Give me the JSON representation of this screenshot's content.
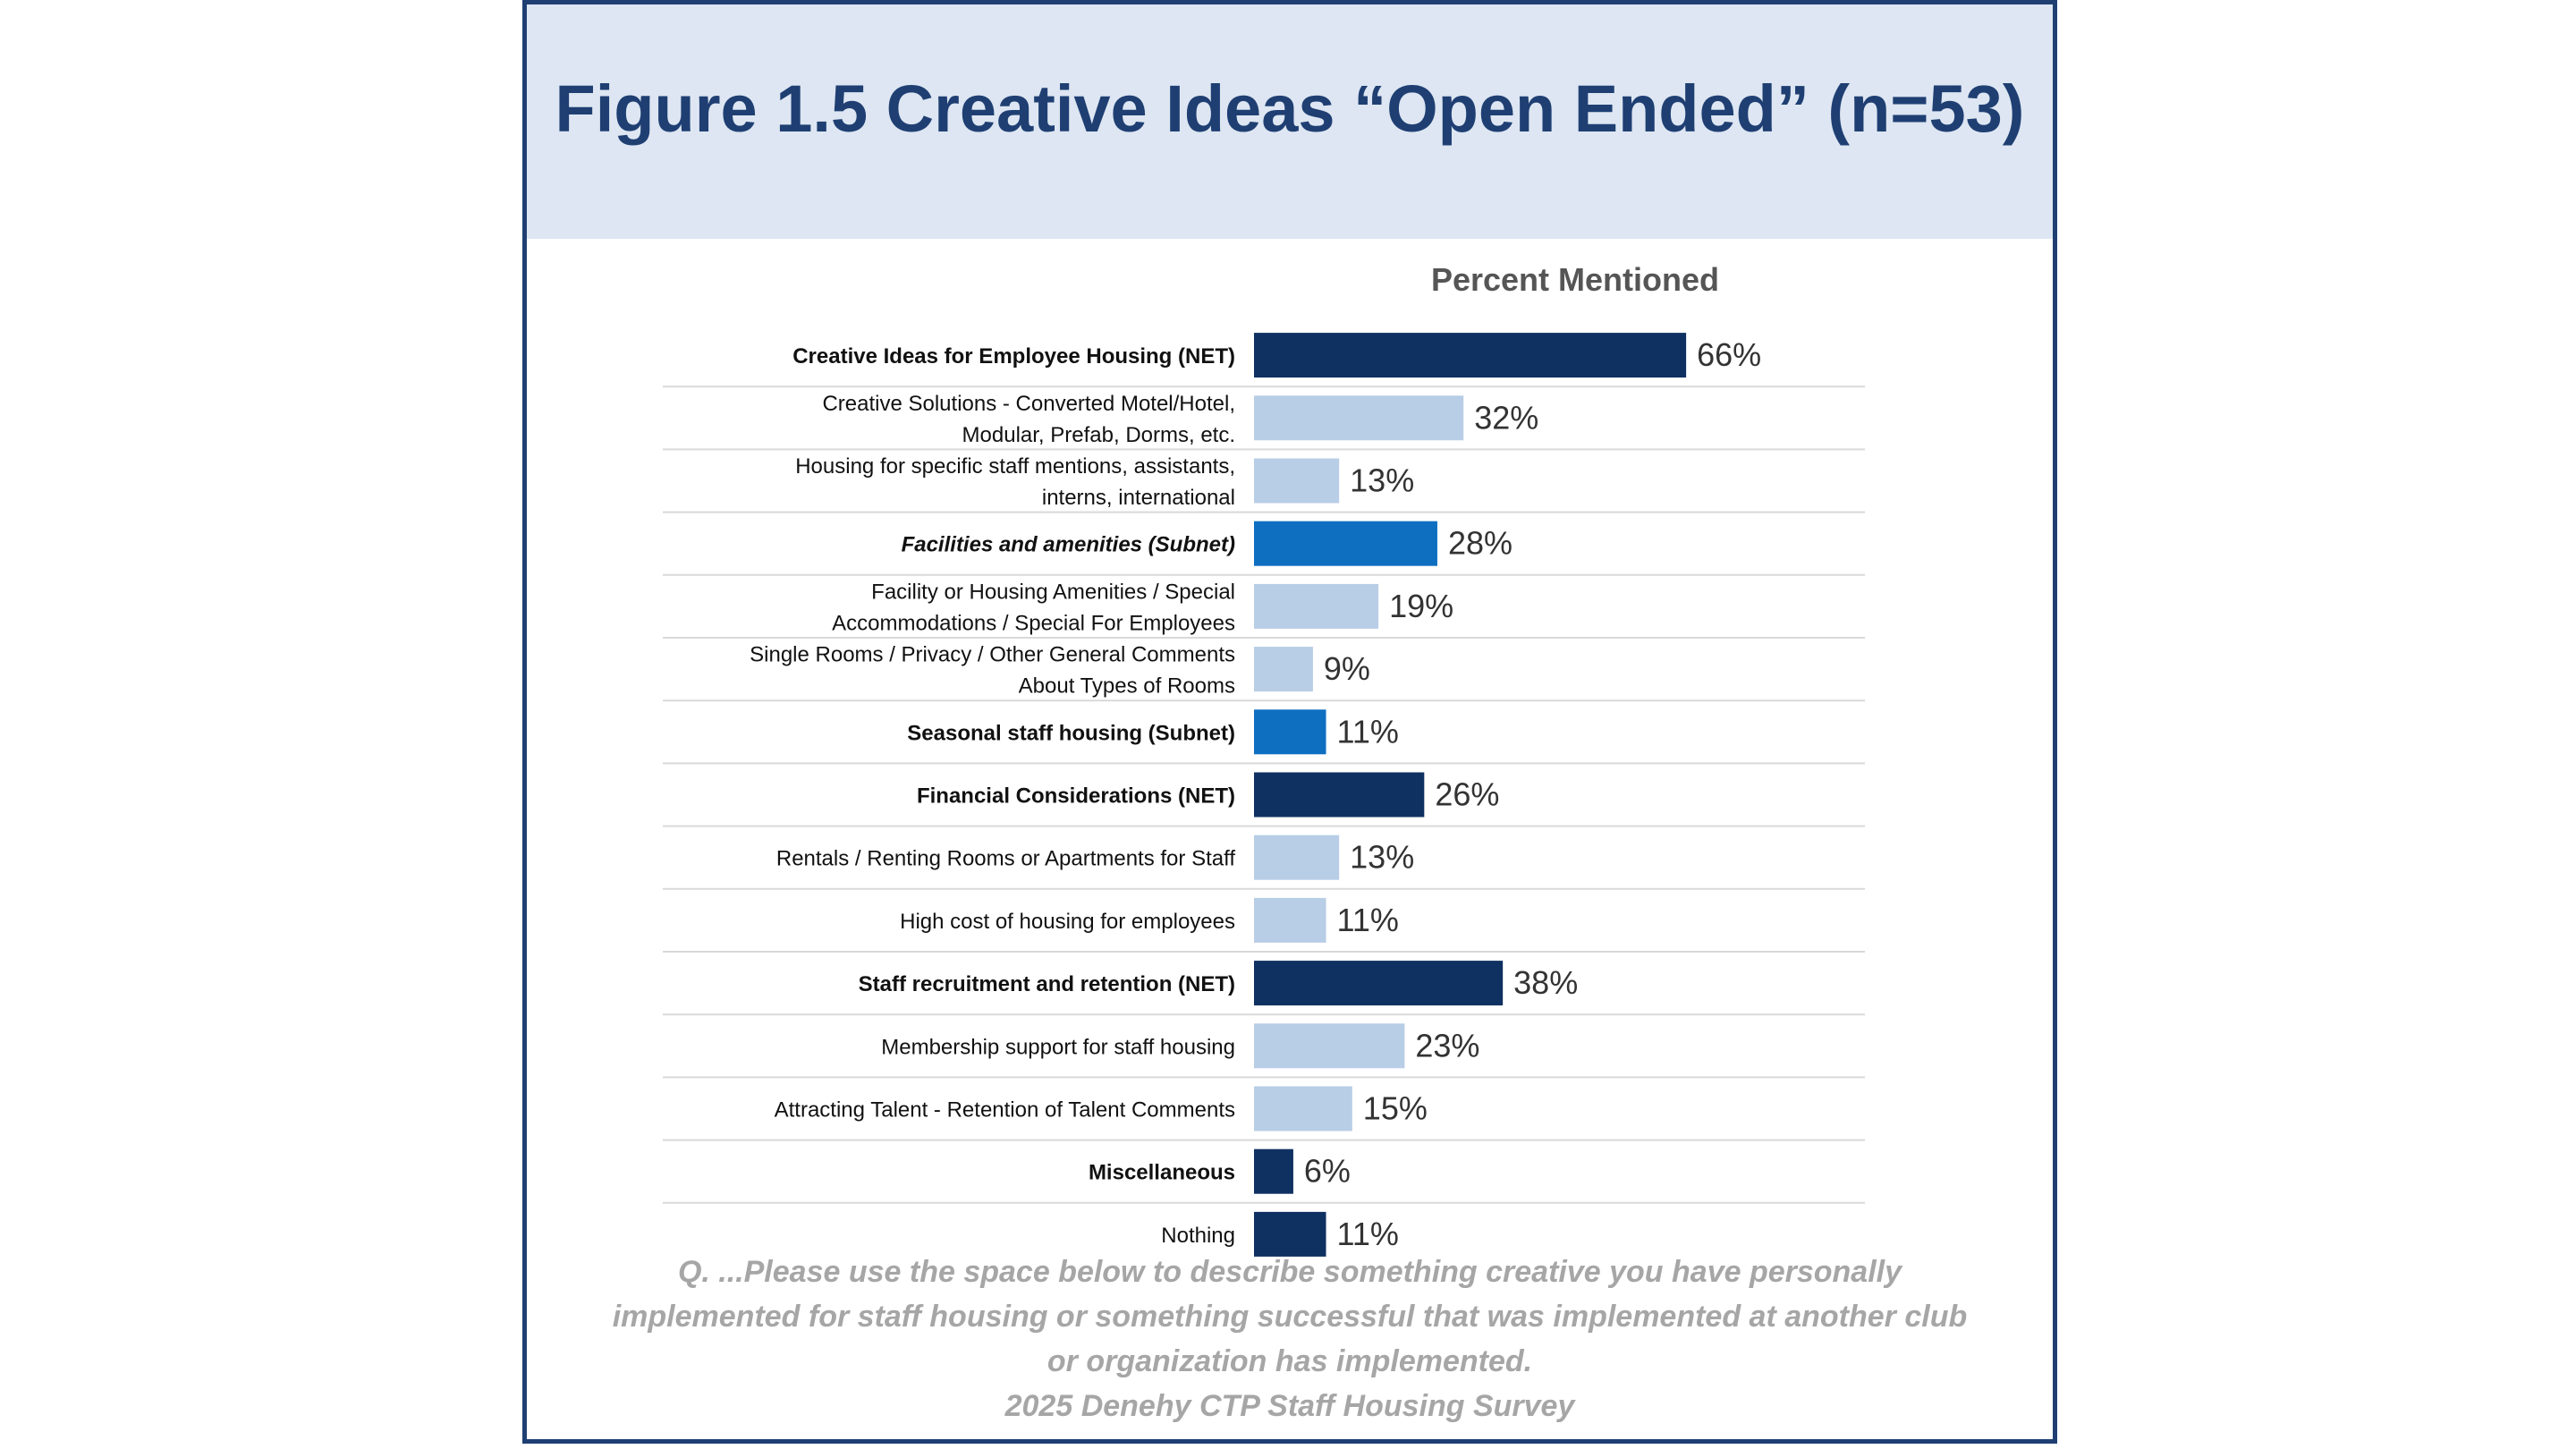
{
  "page": {
    "title": "Figure 1.5 Creative Ideas “Open Ended” (n=53)",
    "footnote_lines": [
      "Q. ...Please use the space below to describe something creative you have personally",
      "implemented for staff housing or something successful that was implemented at another club",
      "or organization has implemented.",
      "2025 Denehy CTP Staff Housing Survey"
    ]
  },
  "colors": {
    "net": "#0f3161",
    "subnet": "#0e6fc1",
    "detail": "#b8cde6",
    "title": "#1f3f73",
    "header_bg": "#dde6f2"
  },
  "chart_data": {
    "type": "bar",
    "orientation": "horizontal",
    "title": "Percent Mentioned",
    "value_suffix": "%",
    "xlim": [
      0,
      100
    ],
    "grid": false,
    "legend": "none",
    "categories": [
      {
        "label": [
          "Creative Ideas for Employee Housing (NET)"
        ],
        "value": 66,
        "kind": "net",
        "style": "bold"
      },
      {
        "label": [
          "Creative Solutions - Converted Motel/Hotel,",
          "Modular, Prefab, Dorms, etc."
        ],
        "value": 32,
        "kind": "detail",
        "style": "normal"
      },
      {
        "label": [
          "Housing for specific staff mentions, assistants,",
          "interns, international"
        ],
        "value": 13,
        "kind": "detail",
        "style": "normal"
      },
      {
        "label": [
          "Facilities and amenities (Subnet)"
        ],
        "value": 28,
        "kind": "subnet",
        "style": "bold-italic"
      },
      {
        "label": [
          "Facility or Housing Amenities / Special",
          "Accommodations / Special For Employees"
        ],
        "value": 19,
        "kind": "detail",
        "style": "normal"
      },
      {
        "label": [
          "Single Rooms / Privacy / Other General Comments",
          "About Types of Rooms"
        ],
        "value": 9,
        "kind": "detail",
        "style": "normal"
      },
      {
        "label": [
          "Seasonal staff housing (Subnet)"
        ],
        "value": 11,
        "kind": "subnet",
        "style": "bold"
      },
      {
        "label": [
          "Financial Considerations (NET)"
        ],
        "value": 26,
        "kind": "net",
        "style": "bold"
      },
      {
        "label": [
          "Rentals / Renting Rooms or Apartments for Staff"
        ],
        "value": 13,
        "kind": "detail",
        "style": "normal"
      },
      {
        "label": [
          "High cost of housing for employees"
        ],
        "value": 11,
        "kind": "detail",
        "style": "normal"
      },
      {
        "label": [
          "Staff recruitment and retention (NET)"
        ],
        "value": 38,
        "kind": "net",
        "style": "bold"
      },
      {
        "label": [
          "Membership support for staff housing"
        ],
        "value": 23,
        "kind": "detail",
        "style": "normal"
      },
      {
        "label": [
          "Attracting Talent - Retention of Talent Comments"
        ],
        "value": 15,
        "kind": "detail",
        "style": "normal"
      },
      {
        "label": [
          "Miscellaneous"
        ],
        "value": 6,
        "kind": "net",
        "style": "bold"
      },
      {
        "label": [
          "Nothing"
        ],
        "value": 11,
        "kind": "net",
        "style": "normal"
      }
    ]
  }
}
